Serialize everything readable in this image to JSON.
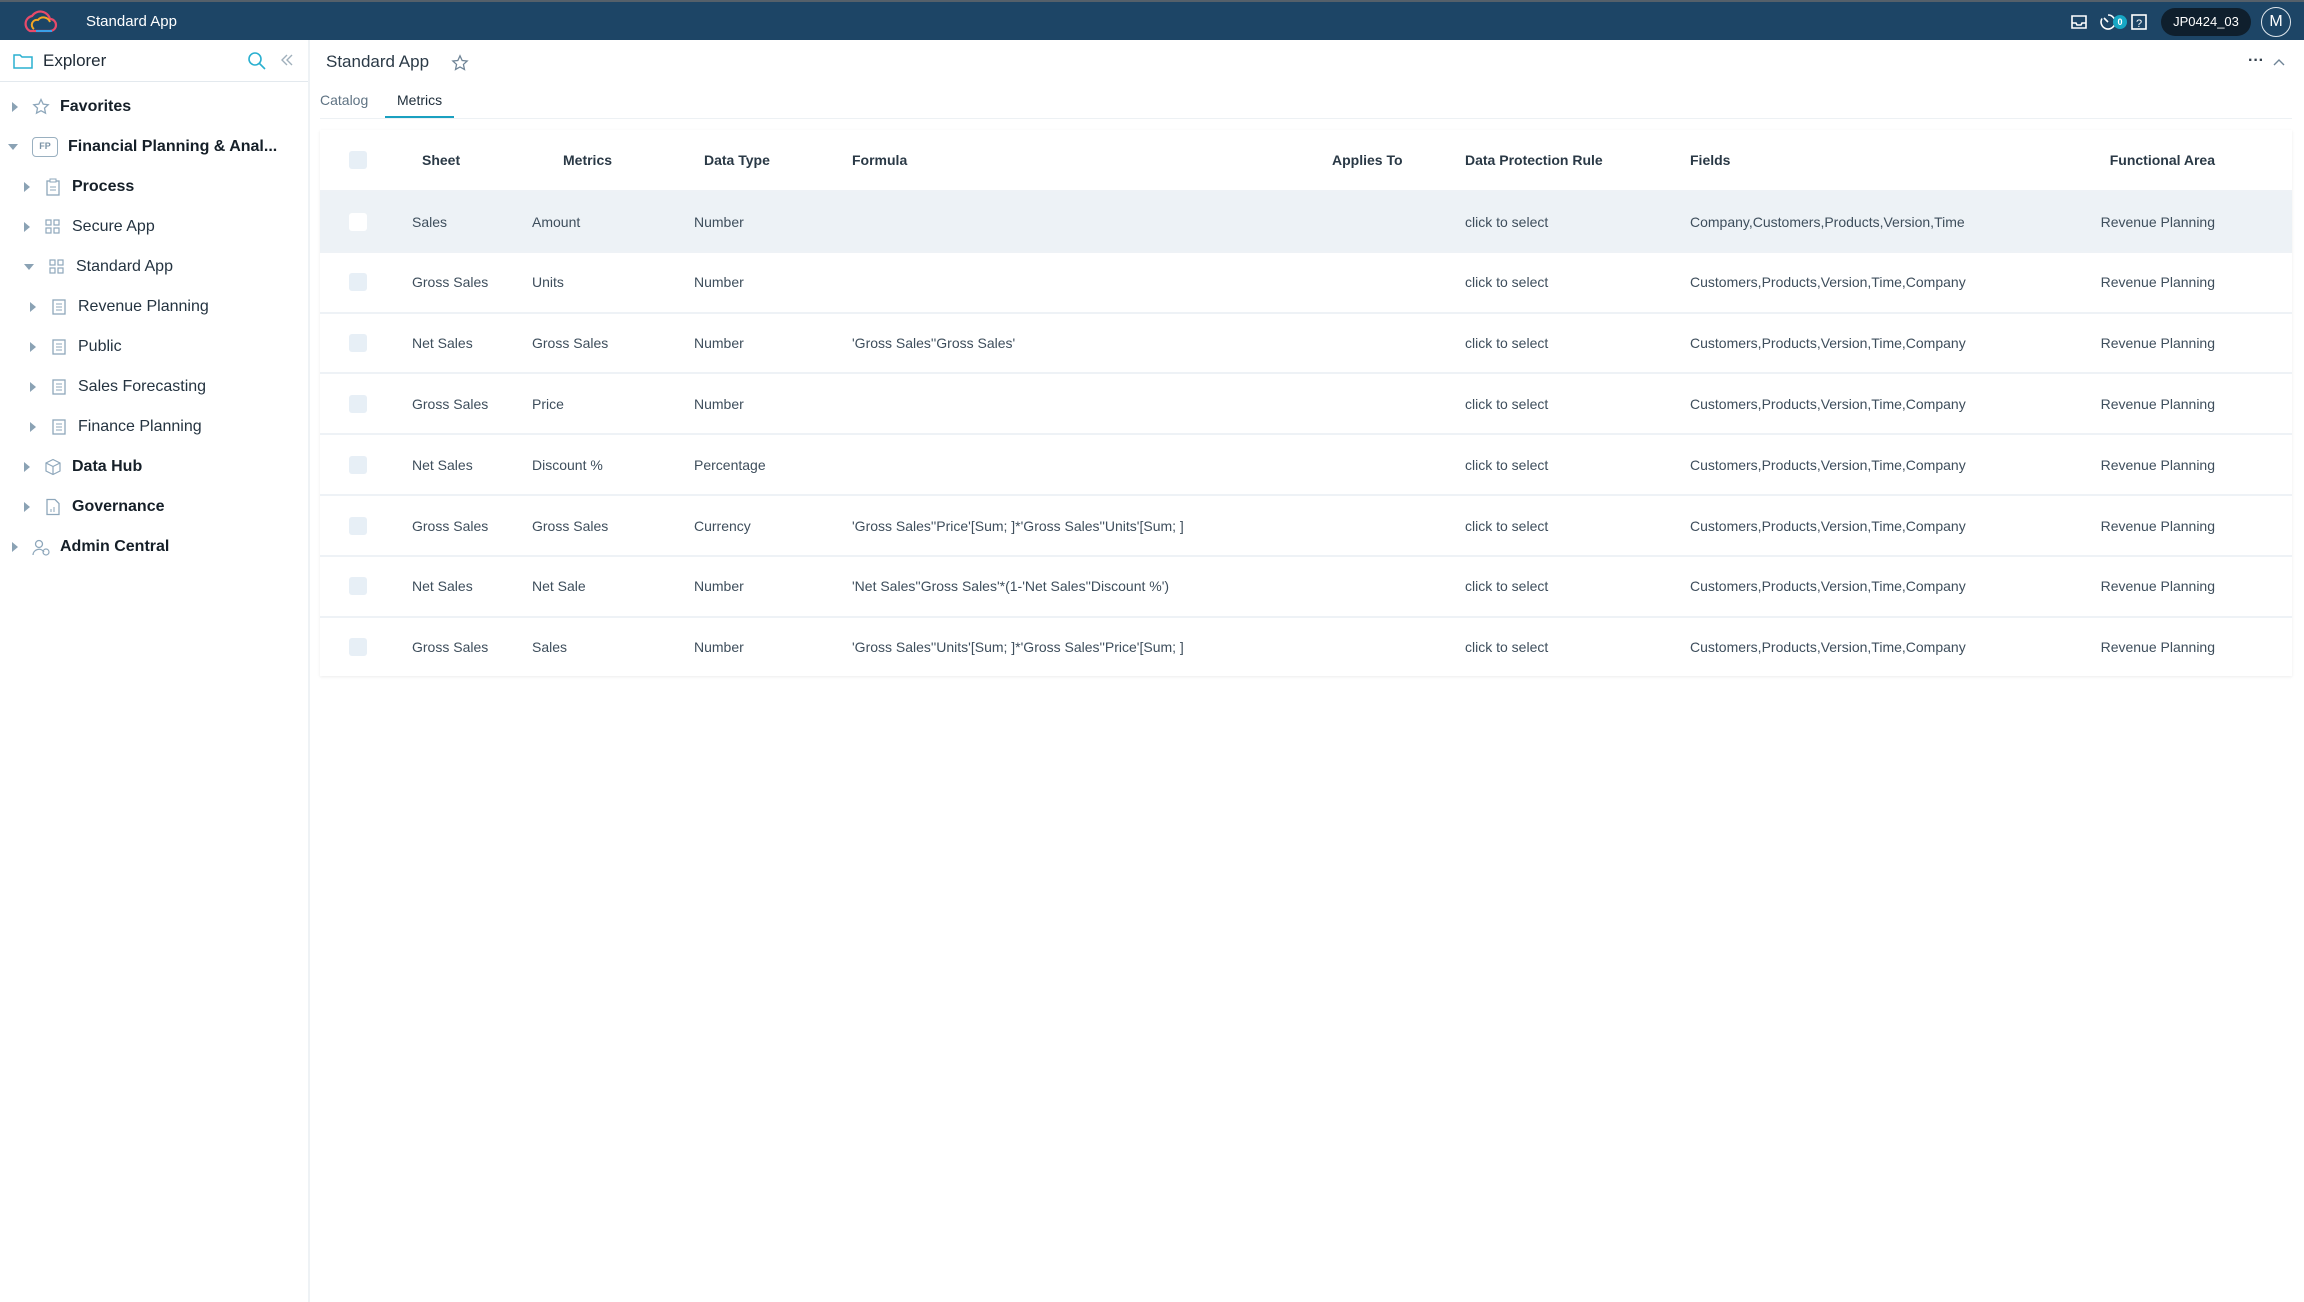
{
  "topbar": {
    "title": "Standard App",
    "notification_count": "0",
    "user_code": "JP0424_03",
    "avatar_initial": "M",
    "icons": [
      "inbox-icon",
      "timer-icon",
      "help-icon"
    ]
  },
  "sidebar": {
    "title": "Explorer",
    "items": [
      {
        "label": "Favorites",
        "icon": "star-icon",
        "expanded": false
      },
      {
        "label": "Financial Planning & Anal...",
        "icon": "fp-badge",
        "badge": "FP",
        "expanded": true
      },
      {
        "label": "Process",
        "icon": "clipboard-icon",
        "expanded": false
      },
      {
        "label": "Secure App",
        "icon": "grid-icon",
        "expanded": false
      },
      {
        "label": "Standard App",
        "icon": "grid-icon",
        "expanded": true
      },
      {
        "label": "Revenue Planning",
        "icon": "book-icon",
        "expanded": false
      },
      {
        "label": "Public",
        "icon": "book-icon",
        "expanded": false
      },
      {
        "label": "Sales Forecasting",
        "icon": "book-icon",
        "expanded": false
      },
      {
        "label": "Finance Planning",
        "icon": "book-icon",
        "expanded": false
      },
      {
        "label": "Data Hub",
        "icon": "cube-icon",
        "expanded": false
      },
      {
        "label": "Governance",
        "icon": "report-icon",
        "expanded": false
      },
      {
        "label": "Admin Central",
        "icon": "admin-icon",
        "expanded": false
      }
    ]
  },
  "main": {
    "title": "Standard App",
    "tabs": [
      {
        "label": "Catalog"
      },
      {
        "label": "Metrics",
        "active": true
      }
    ]
  },
  "table": {
    "headers": [
      "Sheet",
      "Metrics",
      "Data Type",
      "Formula",
      "Applies To",
      "Data Protection Rule",
      "Fields",
      "Functional Area"
    ],
    "rows": [
      [
        "Sales",
        "Amount",
        "Number",
        "",
        "",
        "click to select",
        "Company,Customers,Products,Version,Time",
        "Revenue Planning"
      ],
      [
        "Gross Sales",
        "Units",
        "Number",
        "",
        "",
        "click to select",
        "Customers,Products,Version,Time,Company",
        "Revenue Planning"
      ],
      [
        "Net Sales",
        "Gross Sales",
        "Number",
        "'Gross Sales''Gross Sales'",
        "",
        "click to select",
        "Customers,Products,Version,Time,Company",
        "Revenue Planning"
      ],
      [
        "Gross Sales",
        "Price",
        "Number",
        "",
        "",
        "click to select",
        "Customers,Products,Version,Time,Company",
        "Revenue Planning"
      ],
      [
        "Net Sales",
        "Discount %",
        "Percentage",
        "",
        "",
        "click to select",
        "Customers,Products,Version,Time,Company",
        "Revenue Planning"
      ],
      [
        "Gross Sales",
        "Gross Sales",
        "Currency",
        "'Gross Sales''Price'[Sum; ]*'Gross Sales''Units'[Sum; ]",
        "",
        "click to select",
        "Customers,Products,Version,Time,Company",
        "Revenue Planning"
      ],
      [
        "Net Sales",
        "Net Sale",
        "Number",
        "'Net Sales''Gross Sales'*(1-'Net Sales''Discount %')",
        "",
        "click to select",
        "Customers,Products,Version,Time,Company",
        "Revenue Planning"
      ],
      [
        "Gross Sales",
        "Sales",
        "Number",
        "'Gross Sales''Units'[Sum; ]*'Gross Sales''Price'[Sum; ]",
        "",
        "click to select",
        "Customers,Products,Version,Time,Company",
        "Revenue Planning"
      ]
    ]
  },
  "colors": {
    "topbar": "#1d4566",
    "accent": "#1aa0c0",
    "selected_row": "#edf2f6"
  }
}
